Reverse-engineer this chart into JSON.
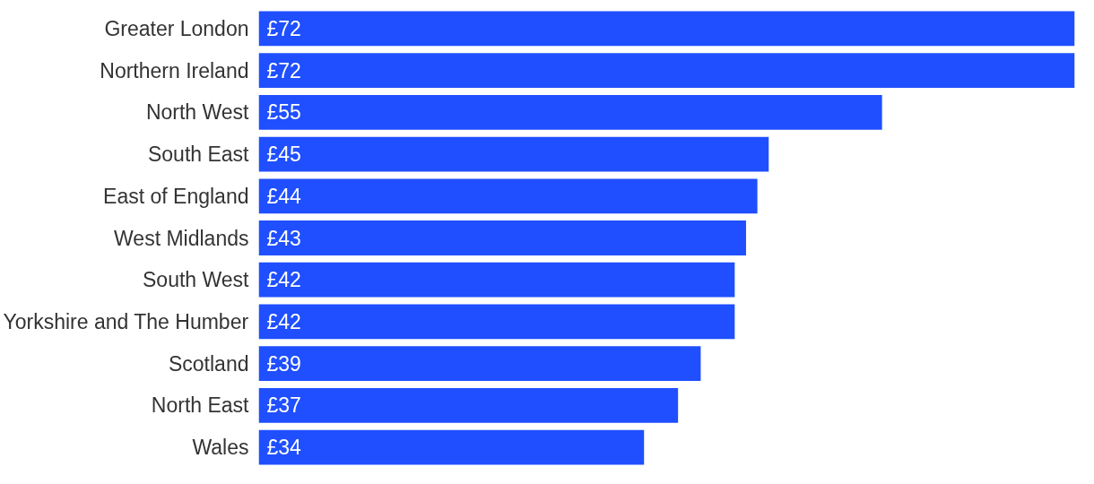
{
  "chart_data": {
    "type": "bar",
    "orientation": "horizontal",
    "categories": [
      "Greater London",
      "Northern Ireland",
      "North West",
      "South East",
      "East of England",
      "West Midlands",
      "South West",
      "Yorkshire and The Humber",
      "Scotland",
      "North East",
      "Wales"
    ],
    "values": [
      72,
      72,
      55,
      45,
      44,
      43,
      42,
      42,
      39,
      37,
      34
    ],
    "value_labels": [
      "£72",
      "£72",
      "£55",
      "£45",
      "£44",
      "£43",
      "£42",
      "£42",
      "£39",
      "£37",
      "£34"
    ],
    "color": "#1f4fff",
    "grid": false,
    "tick_labels": "y"
  }
}
